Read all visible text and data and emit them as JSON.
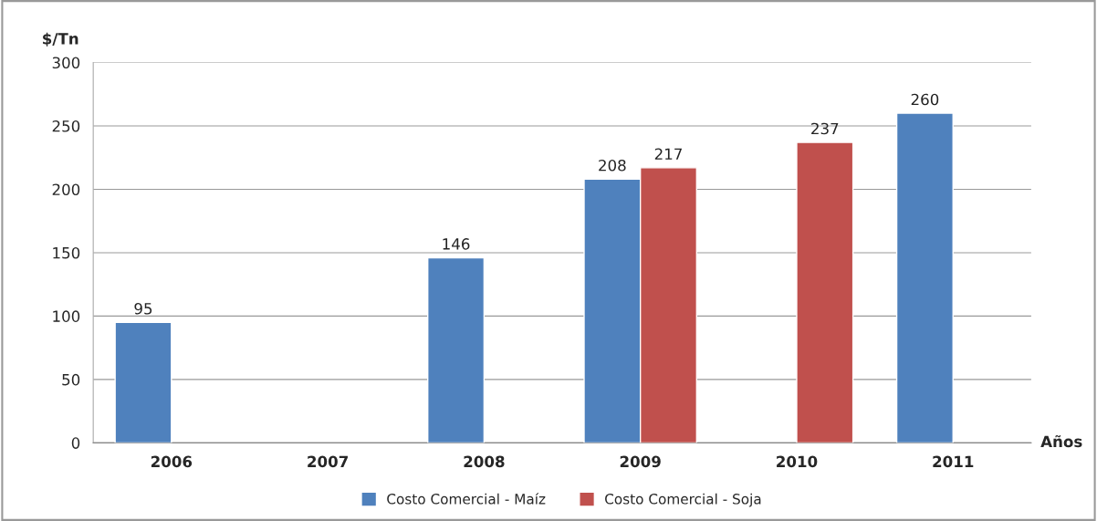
{
  "chart_data": {
    "type": "bar",
    "ylabel": "$/Tn",
    "xlabel": "Años",
    "categories": [
      "2006",
      "2007",
      "2008",
      "2009",
      "2010",
      "2011"
    ],
    "series": [
      {
        "name": "Costo Comercial - Maíz",
        "color": "#4f81bd",
        "values": [
          95,
          null,
          146,
          208,
          null,
          260
        ]
      },
      {
        "name": "Costo Comercial - Soja",
        "color": "#c0504d",
        "values": [
          null,
          null,
          null,
          217,
          237,
          null
        ]
      }
    ],
    "ylim": [
      0,
      300
    ],
    "yticks": [
      0,
      50,
      100,
      150,
      200,
      250,
      300
    ],
    "grid": "y",
    "legend": "bottom",
    "data_labels": true
  }
}
